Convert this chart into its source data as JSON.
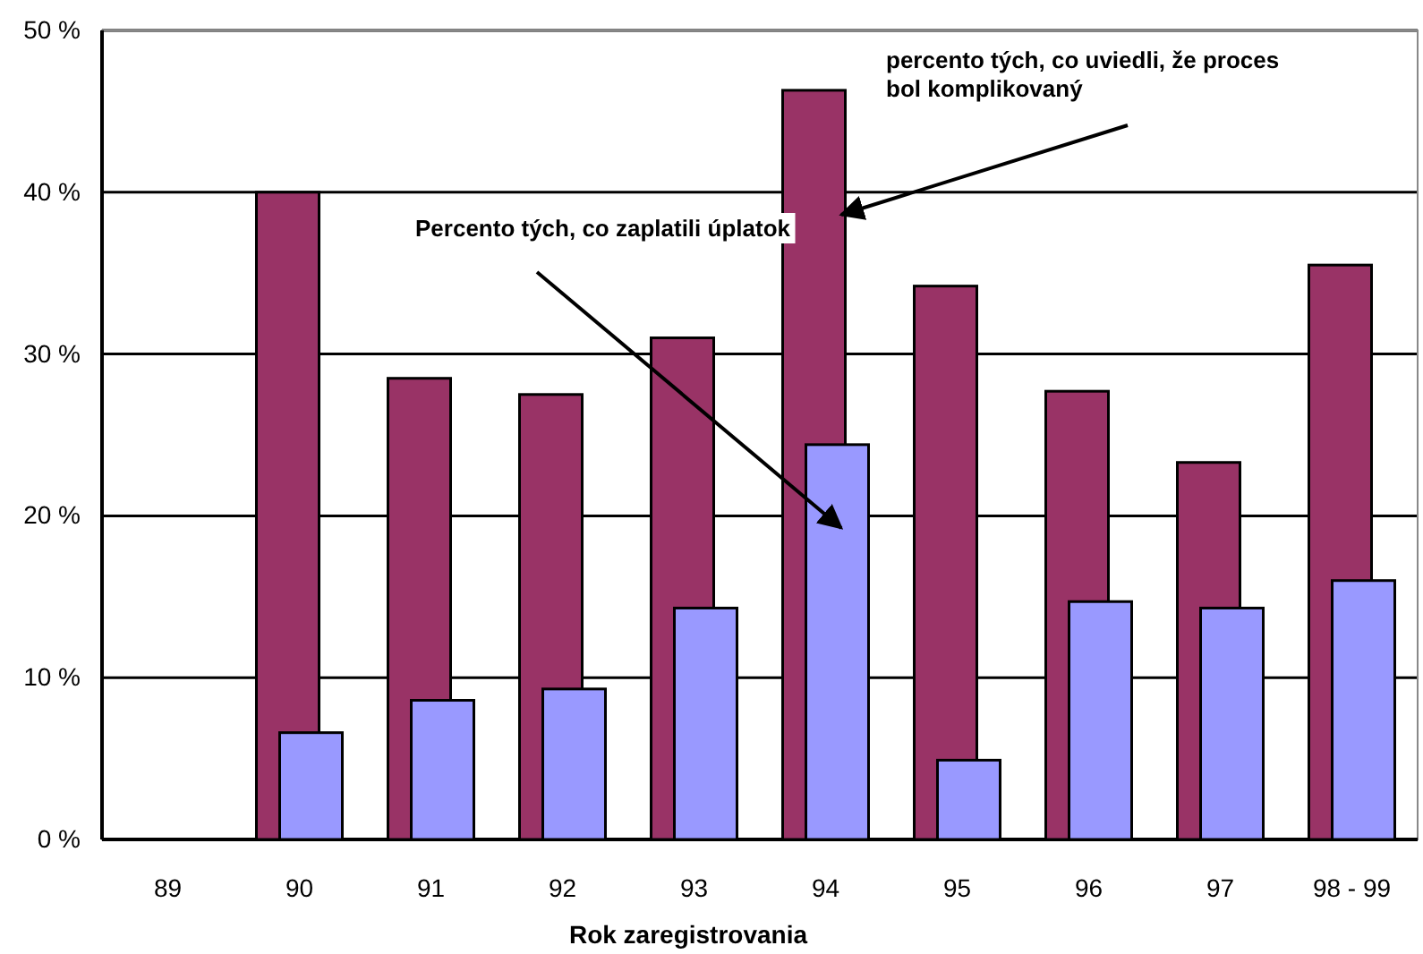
{
  "chart_data": {
    "type": "bar",
    "xlabel": "Rok zaregistrovania",
    "categories": [
      "89",
      "90",
      "91",
      "92",
      "93",
      "94",
      "95",
      "96",
      "97",
      "98 - 99"
    ],
    "series": [
      {
        "color": "#993366",
        "values": [
          null,
          40,
          28.5,
          27.5,
          31,
          46.3,
          34.2,
          27.7,
          23.3,
          35.5
        ]
      },
      {
        "color": "#9999ff",
        "values": [
          null,
          6.6,
          8.6,
          9.3,
          14.3,
          24.4,
          4.9,
          14.7,
          14.3,
          16
        ]
      }
    ],
    "ylim": [
      0,
      50
    ],
    "yticks": [
      {
        "value": 0,
        "label": "0 %"
      },
      {
        "value": 10,
        "label": "10 %"
      },
      {
        "value": 20,
        "label": "20 %"
      },
      {
        "value": 30,
        "label": "30 %"
      },
      {
        "value": 40,
        "label": "40 %"
      },
      {
        "value": 50,
        "label": "50 %"
      }
    ],
    "grid": "y",
    "annotations": [
      "percento tých, co uviedli, že proces bol komplikovaný",
      "Percento tých, co zaplatili úplatok"
    ]
  }
}
